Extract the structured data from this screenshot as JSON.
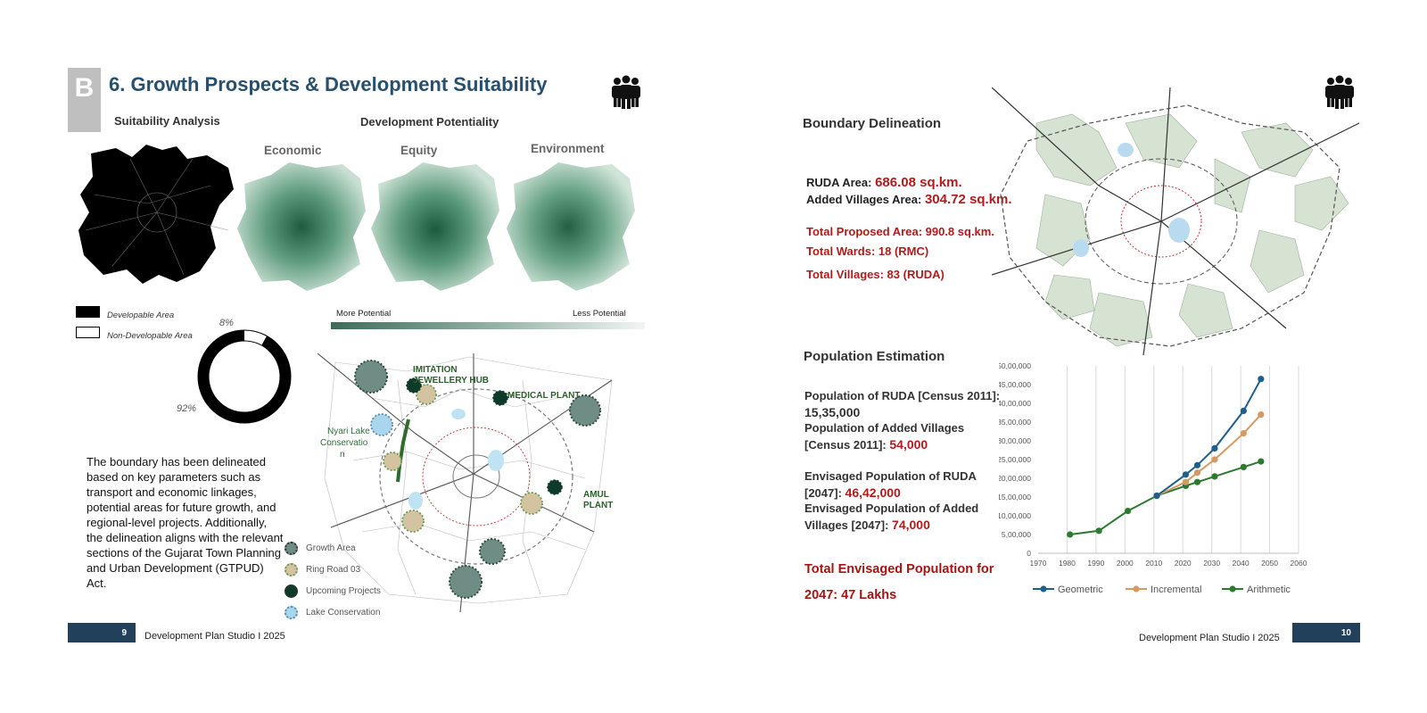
{
  "left": {
    "badge": "B",
    "title": "6. Growth Prospects & Development Suitability",
    "suitability_label": "Suitability Analysis",
    "potentiality_label": "Development Potentiality",
    "categories": [
      "Economic",
      "Equity",
      "Environment"
    ],
    "legend": {
      "developable": "Developable Area",
      "non_developable": "Non-Developable Area"
    },
    "donut": {
      "developable_pct": 92,
      "non_developable_pct": 8,
      "label_developable": "92%",
      "label_non": "8%"
    },
    "gradient": {
      "more": "More Potential",
      "less": "Less Potential"
    },
    "paragraph": "The boundary has been delineated based on key parameters such as transport and economic linkages, potential areas for future growth, and regional-level projects. Additionally, the delineation aligns with the relevant sections of the Gujarat Town Planning and Urban Development (GTPUD) Act.",
    "map_labels": {
      "imitation_1": "IMITATION",
      "imitation_2": "JEWELLERY HUB",
      "medical": "MEDICAL PLANT",
      "nyari_1": "Nyari Lake",
      "nyari_2": "Conservatio",
      "nyari_3": "n",
      "amul_1": "AMUL",
      "amul_2": "PLANT"
    },
    "map_legend": [
      "Growth Area",
      "Ring Road 03",
      "Upcoming Projects",
      "Lake Conservation"
    ],
    "page_number": "9",
    "footer": "Development Plan Studio I 2025"
  },
  "right": {
    "boundary_heading": "Boundary Delineation",
    "ruda_area_label": "RUDA Area: ",
    "ruda_area_value": "686.08 sq.km.",
    "added_label": "Added Villages Area: ",
    "added_value": "304.72 sq.km.",
    "total_area": "Total Proposed Area: 990.8 sq.km.",
    "total_wards": "Total Wards: 18 (RMC)",
    "total_villages": "Total Villages: 83 (RUDA)",
    "population_heading": "Population Estimation",
    "pop_ruda_label": "Population of RUDA [Census 2011]:",
    "pop_ruda_value": "15,35,000",
    "pop_added_label_1": "Population of Added Villages",
    "pop_added_label_2": "[Census 2011]: ",
    "pop_added_value": "54,000",
    "env_ruda_label_1": "Envisaged Population of RUDA",
    "env_ruda_label_2": "[2047]: ",
    "env_ruda_value": "46,42,000",
    "env_added_label_1": "Envisaged Population of Added",
    "env_added_label_2": "Villages [2047]: ",
    "env_added_value": "74,000",
    "total_env_1": "Total Envisaged Population for",
    "total_env_2": "2047:  47 Lakhs",
    "page_number": "10",
    "footer": "Development Plan Studio I 2025"
  },
  "colors": {
    "navy": "#23405a",
    "title": "#27506f",
    "accent_red": "#b11b1b",
    "geometric": "#1f5f8b",
    "incremental": "#d49a62",
    "arithmetic": "#2b7a2f"
  },
  "chart_data": {
    "type": "line",
    "x": [
      1981,
      1991,
      2001,
      2011,
      2021,
      2025,
      2031,
      2041,
      2047
    ],
    "series": [
      {
        "name": "Geometric",
        "x": [
          2011,
          2021,
          2025,
          2031,
          2041,
          2047
        ],
        "values": [
          1535000,
          2100000,
          2350000,
          2800000,
          3800000,
          4650000
        ]
      },
      {
        "name": "Incremental",
        "x": [
          2011,
          2021,
          2025,
          2031,
          2041,
          2047
        ],
        "values": [
          1535000,
          1900000,
          2150000,
          2500000,
          3200000,
          3700000
        ]
      },
      {
        "name": "Arithmetic",
        "x": [
          1981,
          1991,
          2001,
          2011,
          2021,
          2025,
          2031,
          2041,
          2047
        ],
        "values": [
          500000,
          600000,
          1130000,
          1535000,
          1800000,
          1900000,
          2050000,
          2300000,
          2450000
        ]
      }
    ],
    "xlim": [
      1970,
      2060
    ],
    "ylim": [
      0,
      5000000
    ],
    "xticks": [
      "1970",
      "1980",
      "1990",
      "2000",
      "2010",
      "2020",
      "2030",
      "2040",
      "2050",
      "2060"
    ],
    "yticks": [
      "0",
      "5,00,000",
      "10,00,000",
      "15,00,000",
      "20,00,000",
      "25,00,000",
      "30,00,000",
      "35,00,000",
      "40,00,000",
      "45,00,000",
      "50,00,000"
    ],
    "grid": "vertical",
    "legend": "bottom"
  }
}
